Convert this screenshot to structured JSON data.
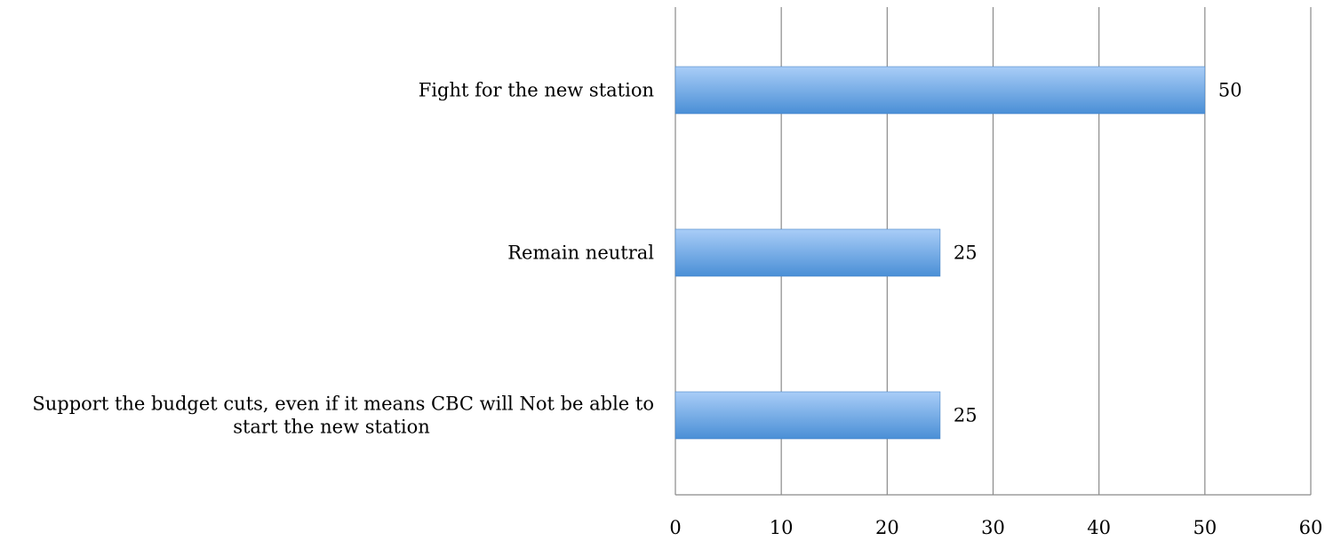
{
  "chart_data": {
    "type": "bar",
    "orientation": "horizontal",
    "title": "",
    "xlabel": "",
    "ylabel": "",
    "xlim": [
      0,
      60
    ],
    "x_ticks": [
      0,
      10,
      20,
      30,
      40,
      50,
      60
    ],
    "tick_labels": [
      "0",
      "10",
      "20",
      "30",
      "40",
      "50",
      "60"
    ],
    "grid": "vertical",
    "categories": [
      [
        "Fight for the new station"
      ],
      [
        "Remain neutral"
      ],
      [
        "Support the budget cuts, even if it means CBC will Not be able to",
        "start the new station"
      ]
    ],
    "values": [
      50,
      25,
      25
    ],
    "data_labels": [
      "50",
      "25",
      "25"
    ],
    "colors": {
      "bar_top": "#a9cdf7",
      "bar_bottom": "#4a8fd6",
      "grid": "#8a8a8a"
    }
  }
}
